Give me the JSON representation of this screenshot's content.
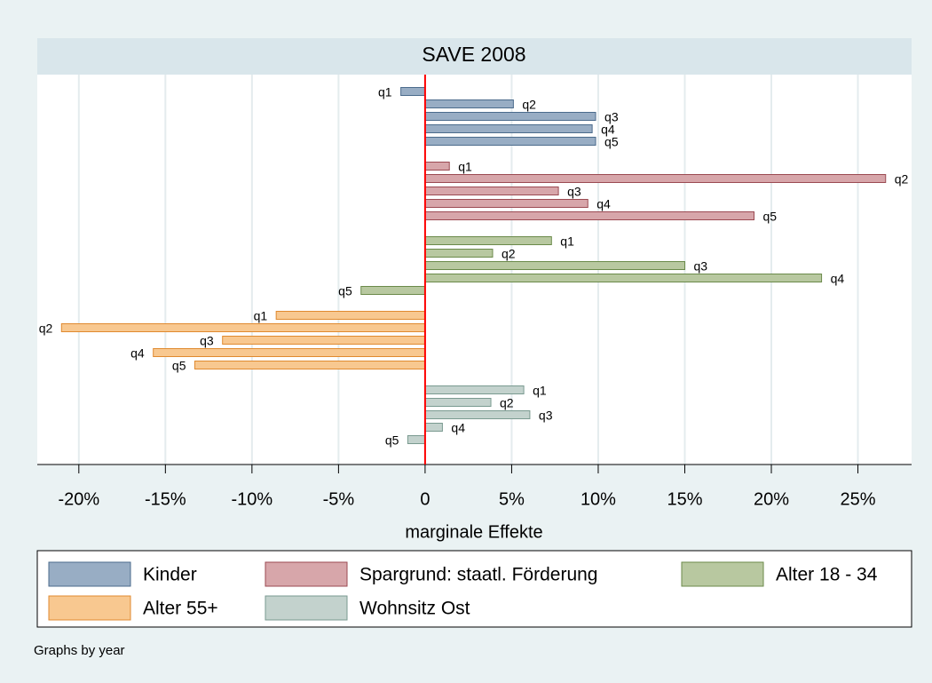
{
  "chart_data": {
    "type": "hbar",
    "title": "SAVE 2008",
    "x_label": "marginale Effekte",
    "note": "Graphs by year",
    "categories": [
      "q1",
      "q2",
      "q3",
      "q4",
      "q5"
    ],
    "series": [
      {
        "name": "Kinder",
        "color": "#98adc4",
        "edge_color": "#4b6b8c",
        "values": [
          -1.4,
          5.1,
          9.85,
          9.65,
          9.85
        ]
      },
      {
        "name": "Spargrund: staatl. Förderung",
        "color": "#d7a6aa",
        "edge_color": "#9b4a52",
        "values": [
          1.4,
          26.6,
          7.7,
          9.4,
          19.0
        ]
      },
      {
        "name": "Alter 18 - 34",
        "color": "#b8c8a0",
        "edge_color": "#6b8a4a",
        "values": [
          7.3,
          3.9,
          15.0,
          22.9,
          -3.7
        ]
      },
      {
        "name": "Alter 55+",
        "color": "#f8c890",
        "edge_color": "#e08a30",
        "values": [
          -8.6,
          -21.0,
          -11.7,
          -15.7,
          -13.3
        ]
      },
      {
        "name": "Wohnsitz Ost",
        "color": "#c3d2cd",
        "edge_color": "#7a9a90",
        "values": [
          5.7,
          3.8,
          6.05,
          1.0,
          -1.0
        ]
      }
    ],
    "xlim": [
      -22.4,
      28.1
    ],
    "xticks": [
      {
        "value": -20,
        "label": "-20%"
      },
      {
        "value": -15,
        "label": "-15%"
      },
      {
        "value": -10,
        "label": "-10%"
      },
      {
        "value": -5,
        "label": "-5%"
      },
      0,
      {
        "value": 5,
        "label": "5%"
      },
      {
        "value": 10,
        "label": "10%"
      },
      {
        "value": 15,
        "label": "15%"
      },
      {
        "value": 20,
        "label": "20%"
      },
      {
        "value": 25,
        "label": "25%"
      }
    ],
    "grid": true,
    "zero_line_color": "#ff0000"
  }
}
